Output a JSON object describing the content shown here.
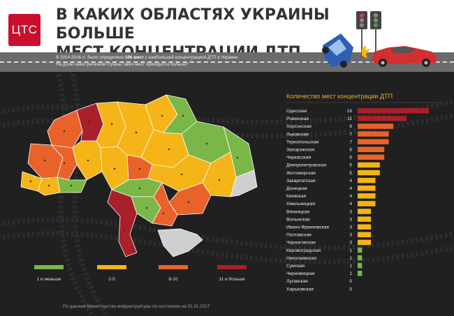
{
  "header": {
    "logo_text": "ЦТС",
    "title_line1": "В КАКИХ ОБЛАСТЯХ УКРАИНЫ БОЛЬШЕ",
    "title_line2": "МЕСТ КОНЦЕНТРАЦИИ ДТП"
  },
  "intro": {
    "line1_prefix": "В 2014-2016 гг. было определено",
    "line1_bold": "106 мест",
    "line1_suffix": "с наибольшей концентрацией ДТП в Украине.",
    "line2": "На долю каких регионов страны таких мест приходится больше?"
  },
  "colors": {
    "brand": "#c8102e",
    "green": "#7ab648",
    "yellow": "#f5b417",
    "orange": "#e8622a",
    "red": "#a8202a",
    "gray": "#cfcfcf",
    "chart_title": "#f0a630"
  },
  "legend": [
    {
      "label": "1 и меньше",
      "color": "#7ab648"
    },
    {
      "label": "2-5",
      "color": "#f5b417"
    },
    {
      "label": "6-10",
      "color": "#e8622a"
    },
    {
      "label": "11 и больше",
      "color": "#a8202a"
    }
  ],
  "source": "По данным Министерства инфраструктуры по состоянию на 01.01.2017",
  "chart_data": {
    "type": "bar",
    "orientation": "horizontal",
    "title": "Количество мест концентрации ДТП",
    "categories": [
      "Одесская",
      "Ровенская",
      "Херсонская",
      "Львовская",
      "Тернопольская",
      "Запорожская",
      "Черкасская",
      "Днепропетровская",
      "Житомирская",
      "Закарпатская",
      "Донецкая",
      "Киевская",
      "Хмельницкая",
      "Винницкая",
      "Волынская",
      "Ивано-Франковская",
      "Полтавская",
      "Черниговская",
      "Кировоградская",
      "Николаевская",
      "Сумская",
      "Черновицкая",
      "Луганская",
      "Харьковская"
    ],
    "values": [
      16,
      11,
      8,
      7,
      7,
      6,
      6,
      5,
      5,
      4,
      4,
      4,
      4,
      3,
      3,
      3,
      3,
      3,
      1,
      1,
      1,
      1,
      0,
      0
    ],
    "xlim": [
      0,
      16
    ]
  }
}
